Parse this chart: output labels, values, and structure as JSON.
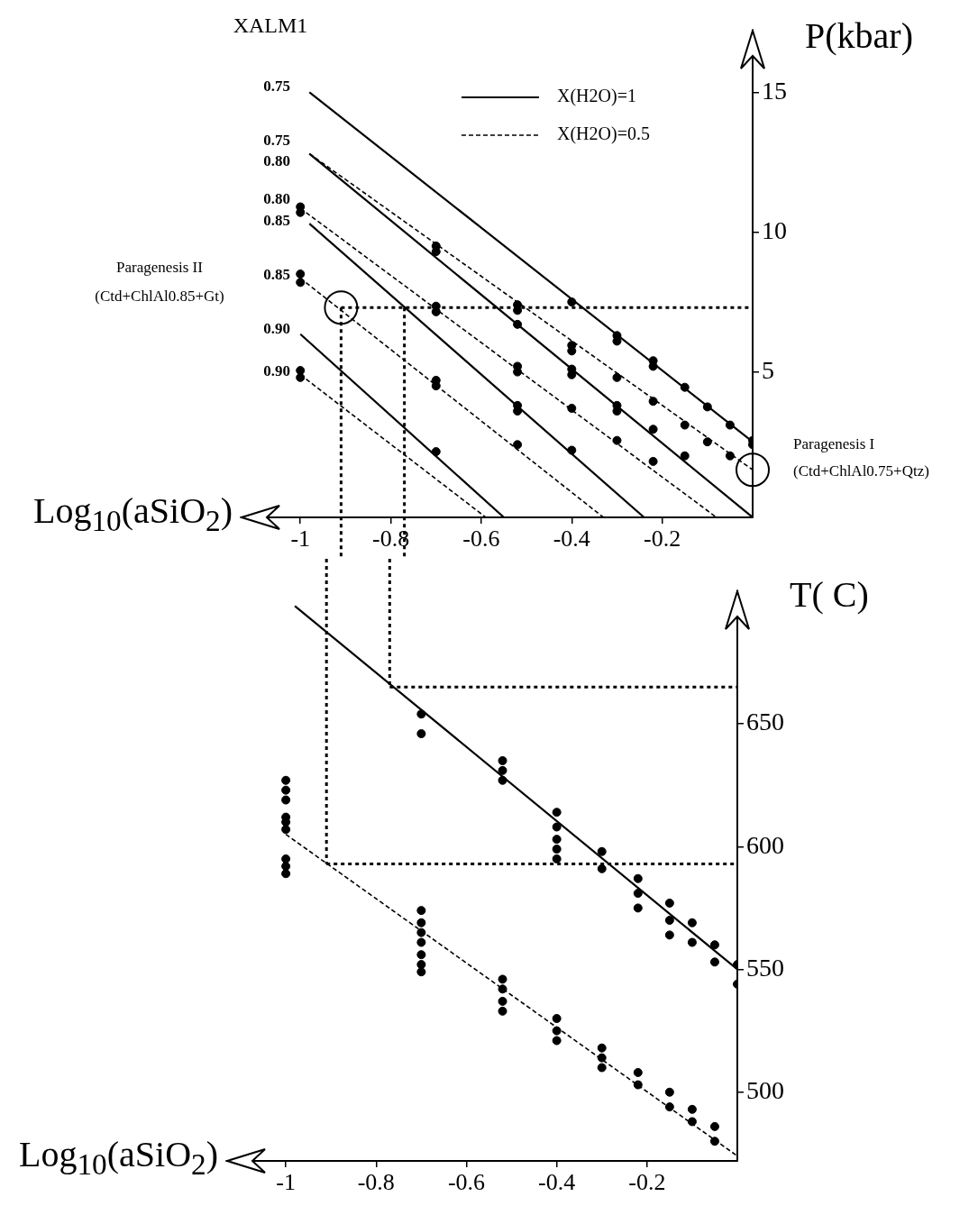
{
  "chart_data": [
    {
      "type": "line",
      "xlabel": "Log$_{10}$(aSiO$_{2}$)",
      "ylabel": "P(kbar)",
      "xlim": [
        -1.13,
        0
      ],
      "xticks": [
        -1,
        -0.8,
        -0.6,
        -0.4,
        -0.2
      ],
      "ylim": [
        -0.2,
        17.2
      ],
      "yticks": [
        5,
        10,
        15
      ],
      "legend": "top",
      "series": [
        {
          "name": "X(H2O)=1",
          "color": "#000000",
          "line_style": "solid",
          "x": [
            -0.98,
            0
          ],
          "values": [
            15.0,
            2.5
          ]
        },
        {
          "name": "X(H2O)=0.5",
          "color": "#000000",
          "line_style": "dashed",
          "x": [
            -0.98,
            0
          ],
          "values": [
            12.8,
            1.5
          ]
        },
        {
          "color": "#000000",
          "line_style": "solid",
          "x": [
            -0.98,
            0
          ],
          "values": [
            12.8,
            -0.2
          ]
        },
        {
          "color": "#000000",
          "line_style": "dashed",
          "x": [
            -1,
            -0.08
          ],
          "values": [
            10.85,
            -0.2
          ]
        },
        {
          "color": "#000000",
          "line_style": "solid",
          "x": [
            -0.98,
            -0.24
          ],
          "values": [
            10.3,
            -0.2
          ]
        },
        {
          "color": "#000000",
          "line_style": "dashed",
          "x": [
            -1,
            -0.33
          ],
          "values": [
            8.35,
            -0.2
          ]
        },
        {
          "color": "#000000",
          "line_style": "solid",
          "x": [
            -1,
            -0.55
          ],
          "values": [
            6.35,
            -0.2
          ]
        },
        {
          "color": "#000000",
          "line_style": "dashed",
          "x": [
            -1,
            -0.59
          ],
          "values": [
            4.9,
            -0.2
          ]
        },
        {
          "type": "scatter",
          "color": "#000000",
          "marker": "circle",
          "x": [
            -1,
            -1,
            -1,
            -1,
            -1,
            -1,
            -0.7,
            -0.7,
            -0.7,
            -0.7,
            -0.7,
            -0.7,
            -0.7,
            -0.52,
            -0.52,
            -0.52,
            -0.52,
            -0.52,
            -0.52,
            -0.52,
            -0.52,
            -0.4,
            -0.4,
            -0.4,
            -0.4,
            -0.4,
            -0.4,
            -0.4,
            -0.3,
            -0.3,
            -0.3,
            -0.3,
            -0.3,
            -0.3,
            -0.22,
            -0.22,
            -0.22,
            -0.22,
            -0.22,
            -0.15,
            -0.15,
            -0.15,
            -0.1,
            -0.1,
            -0.05,
            -0.05,
            0,
            0
          ],
          "values": [
            10.9,
            10.7,
            8.5,
            8.2,
            5.05,
            4.8,
            9.5,
            9.3,
            7.35,
            7.15,
            4.7,
            4.5,
            2.15,
            7.4,
            7.2,
            6.7,
            5.2,
            5.0,
            3.8,
            3.6,
            2.4,
            7.5,
            5.95,
            5.75,
            5.1,
            4.9,
            3.7,
            2.2,
            6.3,
            6.1,
            4.8,
            3.8,
            3.6,
            2.55,
            5.4,
            5.2,
            3.95,
            2.95,
            1.8,
            4.45,
            3.1,
            2.0,
            3.75,
            2.5,
            3.1,
            2.0,
            2.55,
            2.4
          ]
        },
        {
          "type": "bubble",
          "color": "#000000",
          "x": [
            -0.91,
            0
          ],
          "values": [
            7.3,
            1.5
          ],
          "sizes": [
            1,
            1
          ]
        }
      ],
      "ref_lines": [
        {
          "axis": "y",
          "value": 7.3,
          "line_style": "dotted"
        },
        {
          "axis": "x",
          "value": -0.91,
          "line_style": "dotted"
        },
        {
          "axis": "x",
          "value": -0.77,
          "line_style": "dotted"
        }
      ],
      "annotations": [
        "XALM1",
        "0.75",
        "0.75",
        "0.80",
        "0.80",
        "0.85",
        "0.85",
        "0.90",
        "0.90",
        "Paragenesis II\n(Ctd+ChlAl0.85+Gt)",
        {
          "text": "Paragenesis I\n(Ctd+ChlAl0.75+Qtz)",
          "x": 0,
          "y": 1.5
        }
      ]
    },
    {
      "type": "line",
      "xlabel": "Log$_{10}$(aSiO$_{2}$)",
      "ylabel": "T( C)",
      "xlim": [
        -1.13,
        0
      ],
      "xticks": [
        -1,
        -0.8,
        -0.6,
        -0.4,
        -0.2
      ],
      "ylim": [
        472,
        704
      ],
      "yticks": [
        500,
        550,
        600,
        650
      ],
      "series": [
        {
          "color": "#000000",
          "line_style": "solid",
          "x": [
            -0.98,
            0
          ],
          "values": [
            698,
            550
          ]
        },
        {
          "color": "#000000",
          "line_style": "dashed",
          "x": [
            -1,
            0
          ],
          "values": [
            605,
            474
          ]
        },
        {
          "type": "scatter",
          "color": "#000000",
          "marker": "circle",
          "x": [
            -0.7,
            -0.7,
            -0.52,
            -0.52,
            -0.52,
            -0.4,
            -0.4,
            -0.4,
            -0.4,
            -0.4,
            -0.3,
            -0.3,
            -0.22,
            -0.22,
            -0.22,
            -0.15,
            -0.15,
            -0.15,
            -0.1,
            -0.1,
            -0.05,
            -0.05,
            0,
            0,
            -1,
            -1,
            -1,
            -1,
            -1,
            -1,
            -1,
            -1,
            -1,
            -0.7,
            -0.7,
            -0.7,
            -0.7,
            -0.7,
            -0.7,
            -0.7,
            -0.52,
            -0.52,
            -0.52,
            -0.52,
            -0.4,
            -0.4,
            -0.4,
            -0.3,
            -0.3,
            -0.3,
            -0.22,
            -0.22,
            -0.15,
            -0.15,
            -0.1,
            -0.1,
            -0.05,
            -0.05
          ],
          "values": [
            654,
            646,
            635,
            631,
            627,
            614,
            608,
            603,
            599,
            595,
            598,
            591,
            587,
            581,
            575,
            577,
            570,
            564,
            569,
            561,
            560,
            553,
            552,
            544,
            627,
            623,
            619,
            612,
            610,
            607,
            595,
            592,
            589,
            574,
            569,
            565,
            561,
            556,
            552,
            549,
            546,
            542,
            537,
            533,
            530,
            525,
            521,
            518,
            514,
            510,
            508,
            503,
            500,
            494,
            493,
            488,
            486,
            480
          ]
        }
      ],
      "ref_lines": [
        {
          "axis": "y",
          "value": 593,
          "line_style": "dotted"
        },
        {
          "axis": "y",
          "value": 665,
          "line_style": "dotted"
        },
        {
          "axis": "x",
          "value": -0.91,
          "line_style": "dotted"
        },
        {
          "axis": "x",
          "value": -0.77,
          "line_style": "dotted"
        }
      ]
    }
  ]
}
